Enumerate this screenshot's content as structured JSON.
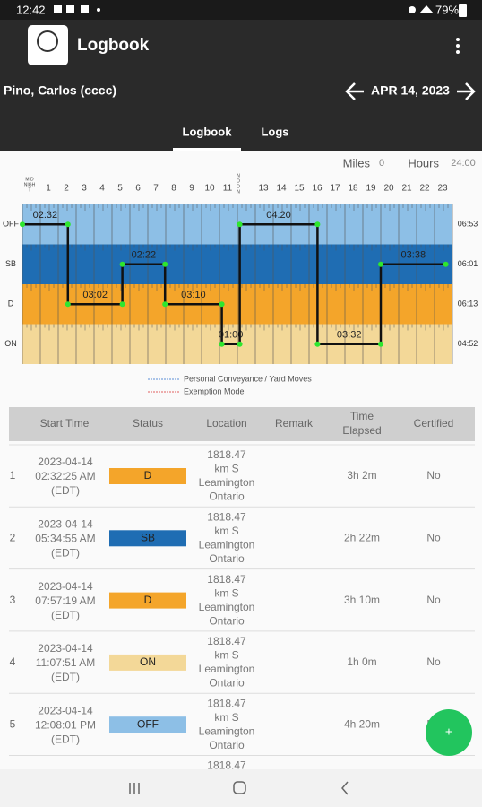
{
  "status_bar": {
    "time": "12:42",
    "battery": "79%"
  },
  "app_bar": {
    "title": "Logbook"
  },
  "driver": {
    "name": "Pino, Carlos (cccc)",
    "date": "APR 14, 2023"
  },
  "tabs": [
    "Logbook",
    "Logs"
  ],
  "summary": {
    "miles_label": "Miles",
    "miles": "0",
    "hours_label": "Hours",
    "hours": "24:00"
  },
  "graph": {
    "xlim": [
      0,
      24
    ],
    "hours": [
      [
        "MID",
        "NIGH",
        "T"
      ],
      "1",
      "2",
      "3",
      "4",
      "5",
      "6",
      "7",
      "8",
      "9",
      "10",
      "11",
      [
        "N",
        "O",
        "O",
        "N"
      ],
      "13",
      "14",
      "15",
      "16",
      "17",
      "18",
      "19",
      "20",
      "21",
      "22",
      "23"
    ],
    "statuses": [
      {
        "name": "OFF",
        "total": "06:53",
        "color": "#8dbfe6"
      },
      {
        "name": "SB",
        "total": "06:01",
        "color": "#1f6db3"
      },
      {
        "name": "D",
        "total": "06:13",
        "color": "#f4a52a"
      },
      {
        "name": "ON",
        "total": "04:52",
        "color": "#f3d898"
      }
    ],
    "segments": [
      {
        "status": "OFF",
        "start": 0,
        "end": 2.54,
        "label": "02:32"
      },
      {
        "status": "D",
        "start": 2.54,
        "end": 5.58,
        "label": "03:02"
      },
      {
        "status": "SB",
        "start": 5.58,
        "end": 7.96,
        "label": "02:22"
      },
      {
        "status": "D",
        "start": 7.96,
        "end": 11.13,
        "label": "03:10"
      },
      {
        "status": "ON",
        "start": 11.13,
        "end": 12.13,
        "label": "01:00"
      },
      {
        "status": "OFF",
        "start": 12.13,
        "end": 16.47,
        "label": "04:20"
      },
      {
        "status": "ON",
        "start": 16.47,
        "end": 20.0,
        "label": "03:32"
      },
      {
        "status": "SB",
        "start": 20.0,
        "end": 23.63,
        "label": "03:38"
      }
    ],
    "legend": [
      "Personal Conveyance / Yard Moves",
      "Exemption Mode"
    ]
  },
  "table": {
    "header": [
      "Start Time",
      "Status",
      "Location",
      "Remark",
      [
        "Time",
        "Elapsed"
      ],
      "Certified"
    ],
    "rows": [
      {
        "index": "1",
        "start": [
          "2023-04-14",
          "02:32:25 AM",
          "(EDT)"
        ],
        "status": "D",
        "location": [
          "1818.47",
          "km S",
          "Leamington",
          "Ontario"
        ],
        "elapsed": "3h 2m",
        "certified": "No"
      },
      {
        "index": "2",
        "start": [
          "2023-04-14",
          "05:34:55 AM",
          "(EDT)"
        ],
        "status": "SB",
        "location": [
          "1818.47",
          "km S",
          "Leamington",
          "Ontario"
        ],
        "elapsed": "2h 22m",
        "certified": "No"
      },
      {
        "index": "3",
        "start": [
          "2023-04-14",
          "07:57:19 AM",
          "(EDT)"
        ],
        "status": "D",
        "location": [
          "1818.47",
          "km S",
          "Leamington",
          "Ontario"
        ],
        "elapsed": "3h 10m",
        "certified": "No"
      },
      {
        "index": "4",
        "start": [
          "2023-04-14",
          "11:07:51 AM",
          "(EDT)"
        ],
        "status": "ON",
        "location": [
          "1818.47",
          "km S",
          "Leamington",
          "Ontario"
        ],
        "elapsed": "1h 0m",
        "certified": "No"
      },
      {
        "index": "5",
        "start": [
          "2023-04-14",
          "12:08:01 PM",
          "(EDT)"
        ],
        "status": "OFF",
        "location": [
          "1818.47",
          "km S",
          "Leamington",
          "Ontario"
        ],
        "elapsed": "4h 20m",
        "certified": "No"
      },
      {
        "location": [
          "1818.47"
        ]
      }
    ]
  },
  "fab": "+"
}
